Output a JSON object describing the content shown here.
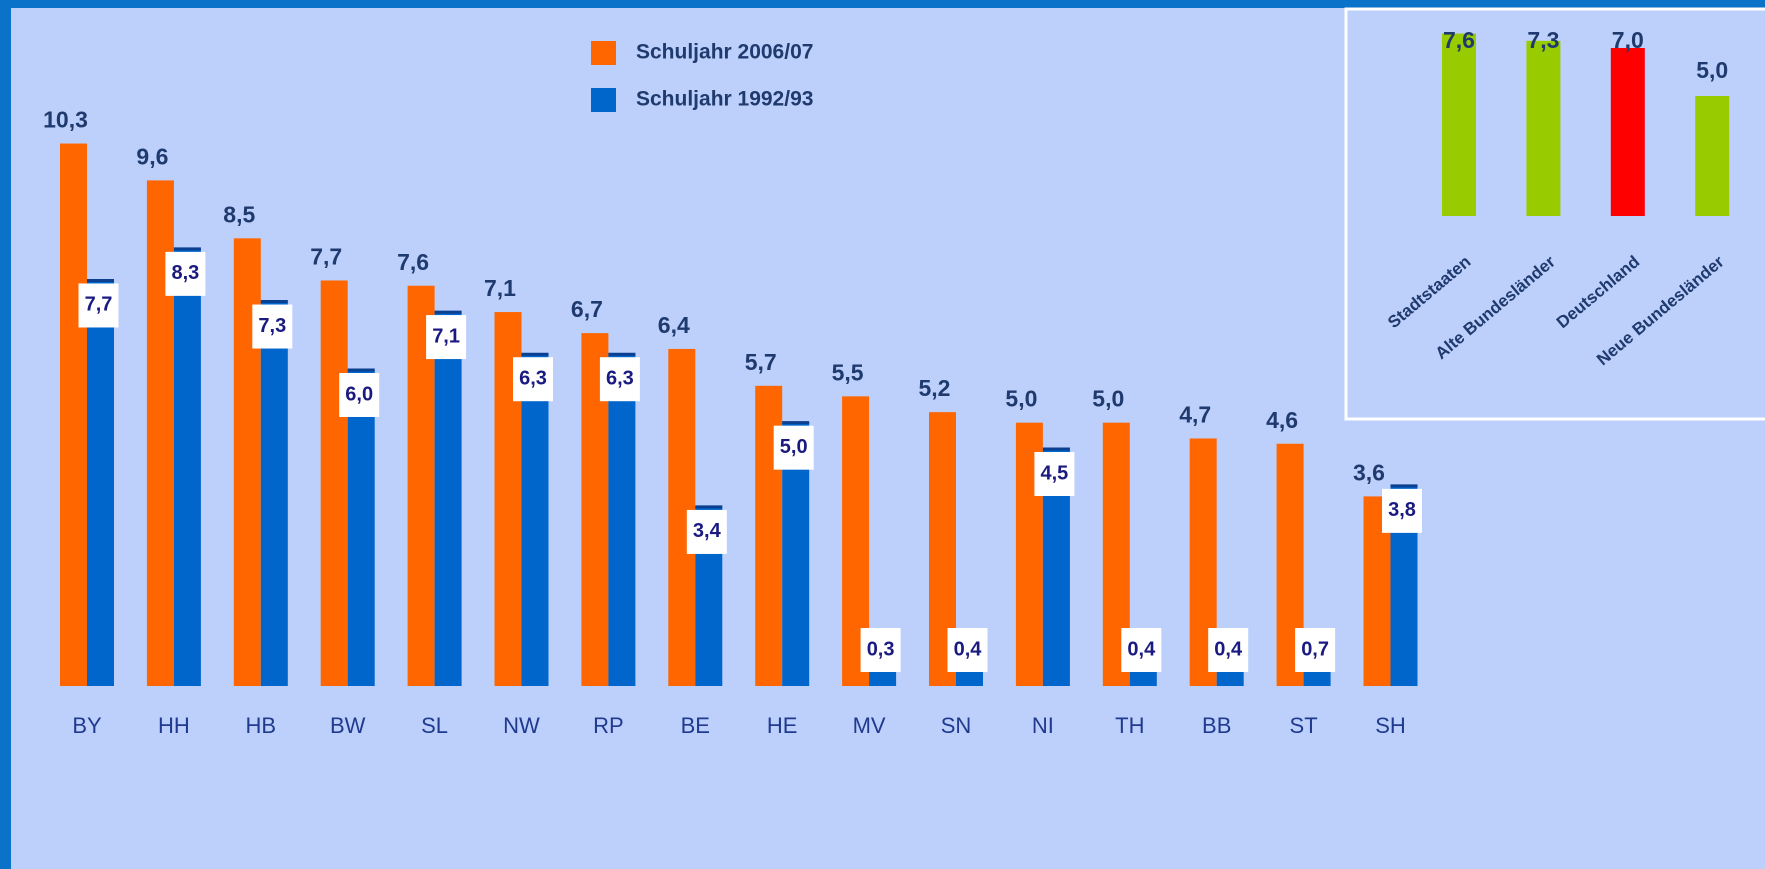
{
  "chart_data": [
    {
      "type": "bar",
      "categories": [
        "BY",
        "HH",
        "HB",
        "BW",
        "SL",
        "NW",
        "RP",
        "BE",
        "HE",
        "MV",
        "SN",
        "NI",
        "TH",
        "BB",
        "ST",
        "SH"
      ],
      "series": [
        {
          "name": "Schuljahr 2006/07",
          "color": "#ff6600",
          "values": [
            10.3,
            9.6,
            8.5,
            7.7,
            7.6,
            7.1,
            6.7,
            6.4,
            5.7,
            5.5,
            5.2,
            5.0,
            5.0,
            4.7,
            4.6,
            3.6
          ],
          "value_labels": [
            "10,3",
            "9,6",
            "8,5",
            "7,7",
            "7,6",
            "7,1",
            "6,7",
            "6,4",
            "5,7",
            "5,5",
            "5,2",
            "5,0",
            "5,0",
            "4,7",
            "4,6",
            "3,6"
          ]
        },
        {
          "name": "Schuljahr 1992/93",
          "color": "#0066cc",
          "values": [
            7.7,
            8.3,
            7.3,
            6.0,
            7.1,
            6.3,
            6.3,
            3.4,
            5.0,
            0.3,
            0.4,
            4.5,
            0.4,
            0.4,
            0.7,
            3.8
          ],
          "value_labels": [
            "7,7",
            "8,3",
            "7,3",
            "6,0",
            "7,1",
            "6,3",
            "6,3",
            "3,4",
            "5,0",
            "0,3",
            "0,4",
            "4,5",
            "0,4",
            "0,4",
            "0,7",
            "3,8"
          ]
        }
      ],
      "ylim": [
        0,
        12
      ],
      "legend": "top"
    },
    {
      "type": "bar",
      "categories": [
        "Stadtstaaten",
        "Alte Bundesländer",
        "Deutschland",
        "Neue Bundesländer"
      ],
      "values": [
        7.6,
        7.3,
        7.0,
        5.0
      ],
      "value_labels": [
        "7,6",
        "7,3",
        "7,0",
        "5,0"
      ],
      "colors": [
        "#99cc00",
        "#99cc00",
        "#ff0000",
        "#99cc00"
      ],
      "ylim": [
        0,
        8
      ]
    }
  ]
}
